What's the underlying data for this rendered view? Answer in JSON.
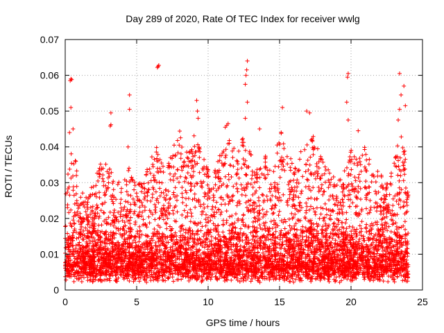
{
  "chart_data": {
    "type": "scatter",
    "title": "Day 289 of 2020, Rate Of TEC Index for receiver wwlg",
    "xlabel": "GPS time / hours",
    "ylabel": "ROTI / TECUs",
    "xlim": [
      0,
      25
    ],
    "ylim": [
      0,
      0.07
    ],
    "x_ticks": [
      0,
      5,
      10,
      15,
      20,
      25
    ],
    "x_tick_labels": [
      "0",
      "5",
      "10",
      "15",
      "20",
      "25"
    ],
    "y_ticks": [
      0,
      0.01,
      0.02,
      0.03,
      0.04,
      0.05,
      0.06,
      0.07
    ],
    "y_tick_labels": [
      "0",
      "0.01",
      "0.02",
      "0.03",
      "0.04",
      "0.05",
      "0.06",
      "0.07"
    ],
    "grid": true,
    "marker": "plus",
    "color": "#ff0000",
    "data_coverage_hours": [
      0,
      24
    ],
    "series": [
      {
        "name": "ROTI",
        "description": "dense scatter of per-satellite ROTI samples, mostly between 0.003 and 0.03 TECU",
        "outliers": [
          {
            "x": 0.4,
            "y": 0.059
          },
          {
            "x": 0.35,
            "y": 0.0585
          },
          {
            "x": 0.45,
            "y": 0.0588
          },
          {
            "x": 0.4,
            "y": 0.051
          },
          {
            "x": 0.55,
            "y": 0.045
          },
          {
            "x": 0.3,
            "y": 0.044
          },
          {
            "x": 3.2,
            "y": 0.0495
          },
          {
            "x": 3.2,
            "y": 0.0462
          },
          {
            "x": 3.15,
            "y": 0.0458
          },
          {
            "x": 4.5,
            "y": 0.0545
          },
          {
            "x": 4.5,
            "y": 0.0505
          },
          {
            "x": 4.4,
            "y": 0.04
          },
          {
            "x": 6.5,
            "y": 0.0625
          },
          {
            "x": 6.55,
            "y": 0.0628
          },
          {
            "x": 6.45,
            "y": 0.0622
          },
          {
            "x": 9.2,
            "y": 0.053
          },
          {
            "x": 9.25,
            "y": 0.05
          },
          {
            "x": 9.3,
            "y": 0.048
          },
          {
            "x": 11.3,
            "y": 0.046
          },
          {
            "x": 11.4,
            "y": 0.0465
          },
          {
            "x": 11.2,
            "y": 0.0455
          },
          {
            "x": 12.75,
            "y": 0.064
          },
          {
            "x": 12.7,
            "y": 0.0615
          },
          {
            "x": 12.65,
            "y": 0.06
          },
          {
            "x": 12.6,
            "y": 0.0575
          },
          {
            "x": 12.75,
            "y": 0.0525
          },
          {
            "x": 12.6,
            "y": 0.048
          },
          {
            "x": 13.6,
            "y": 0.045
          },
          {
            "x": 15.2,
            "y": 0.051
          },
          {
            "x": 16.9,
            "y": 0.05
          },
          {
            "x": 17.1,
            "y": 0.0495
          },
          {
            "x": 19.8,
            "y": 0.0605
          },
          {
            "x": 19.75,
            "y": 0.0595
          },
          {
            "x": 19.7,
            "y": 0.0525
          },
          {
            "x": 19.8,
            "y": 0.0475
          },
          {
            "x": 20.5,
            "y": 0.0445
          },
          {
            "x": 23.4,
            "y": 0.0605
          },
          {
            "x": 23.7,
            "y": 0.057
          },
          {
            "x": 23.5,
            "y": 0.0545
          },
          {
            "x": 23.4,
            "y": 0.0505
          },
          {
            "x": 23.8,
            "y": 0.0515
          },
          {
            "x": 23.3,
            "y": 0.0475
          }
        ],
        "envelope": [
          {
            "x": 0.0,
            "y": 0.026
          },
          {
            "x": 0.5,
            "y": 0.044
          },
          {
            "x": 1.0,
            "y": 0.028
          },
          {
            "x": 1.5,
            "y": 0.026
          },
          {
            "x": 2.0,
            "y": 0.03
          },
          {
            "x": 2.5,
            "y": 0.037
          },
          {
            "x": 3.0,
            "y": 0.035
          },
          {
            "x": 3.5,
            "y": 0.031
          },
          {
            "x": 4.0,
            "y": 0.03
          },
          {
            "x": 4.5,
            "y": 0.035
          },
          {
            "x": 5.0,
            "y": 0.03
          },
          {
            "x": 5.5,
            "y": 0.03
          },
          {
            "x": 6.0,
            "y": 0.038
          },
          {
            "x": 6.5,
            "y": 0.041
          },
          {
            "x": 7.0,
            "y": 0.033
          },
          {
            "x": 7.5,
            "y": 0.04
          },
          {
            "x": 8.0,
            "y": 0.045
          },
          {
            "x": 8.5,
            "y": 0.039
          },
          {
            "x": 9.0,
            "y": 0.044
          },
          {
            "x": 9.5,
            "y": 0.039
          },
          {
            "x": 10.0,
            "y": 0.034
          },
          {
            "x": 10.5,
            "y": 0.036
          },
          {
            "x": 11.0,
            "y": 0.039
          },
          {
            "x": 11.5,
            "y": 0.044
          },
          {
            "x": 12.0,
            "y": 0.039
          },
          {
            "x": 12.5,
            "y": 0.043
          },
          {
            "x": 13.0,
            "y": 0.038
          },
          {
            "x": 13.5,
            "y": 0.034
          },
          {
            "x": 14.0,
            "y": 0.038
          },
          {
            "x": 14.5,
            "y": 0.032
          },
          {
            "x": 15.0,
            "y": 0.046
          },
          {
            "x": 15.5,
            "y": 0.04
          },
          {
            "x": 16.0,
            "y": 0.035
          },
          {
            "x": 16.5,
            "y": 0.039
          },
          {
            "x": 17.0,
            "y": 0.046
          },
          {
            "x": 17.5,
            "y": 0.042
          },
          {
            "x": 18.0,
            "y": 0.036
          },
          {
            "x": 18.5,
            "y": 0.034
          },
          {
            "x": 19.0,
            "y": 0.03
          },
          {
            "x": 19.5,
            "y": 0.034
          },
          {
            "x": 20.0,
            "y": 0.04
          },
          {
            "x": 20.5,
            "y": 0.036
          },
          {
            "x": 21.0,
            "y": 0.041
          },
          {
            "x": 21.5,
            "y": 0.035
          },
          {
            "x": 22.0,
            "y": 0.033
          },
          {
            "x": 22.5,
            "y": 0.03
          },
          {
            "x": 23.0,
            "y": 0.036
          },
          {
            "x": 23.5,
            "y": 0.045
          },
          {
            "x": 24.0,
            "y": 0.035
          }
        ],
        "baseline_range": [
          0.002,
          0.006
        ],
        "core_range": [
          0.004,
          0.02
        ]
      }
    ]
  }
}
